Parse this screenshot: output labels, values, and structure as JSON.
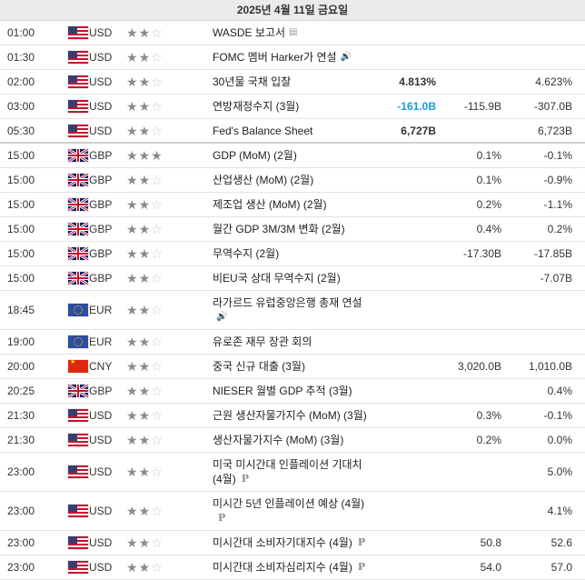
{
  "header": {
    "date": "2025년 4월 11일 금요일"
  },
  "events": [
    {
      "time": "01:00",
      "flag": "us",
      "currency": "USD",
      "stars": 2,
      "event": "WASDE 보고서",
      "icon": "document-icon",
      "actual": "",
      "forecast": "",
      "previous": "",
      "h": 26
    },
    {
      "time": "01:30",
      "flag": "us",
      "currency": "USD",
      "stars": 2,
      "event": "FOMC 멤버 Harker가 연설",
      "icon": "speaker-icon",
      "actual": "",
      "forecast": "",
      "previous": "",
      "h": 26
    },
    {
      "time": "02:00",
      "flag": "us",
      "currency": "USD",
      "stars": 2,
      "event": "30년물 국채 입찰",
      "actual": "4.813%",
      "forecast": "",
      "previous": "4.623%",
      "h": 26
    },
    {
      "time": "03:00",
      "flag": "us",
      "currency": "USD",
      "stars": 2,
      "event": "연방재정수지 (3월)",
      "actual": "-161.0B",
      "actual_color": "blue",
      "forecast": "-115.9B",
      "previous": "-307.0B",
      "h": 26
    },
    {
      "time": "05:30",
      "flag": "us",
      "currency": "USD",
      "stars": 2,
      "event": "Fed's Balance Sheet",
      "actual": "6,727B",
      "forecast": "",
      "previous": "6,723B",
      "h": 25,
      "thick": true
    },
    {
      "time": "15:00",
      "flag": "gb",
      "currency": "GBP",
      "stars": 3,
      "event": "GDP (MoM) (2월)",
      "actual": "",
      "forecast": "0.1%",
      "previous": "-0.1%",
      "h": 26
    },
    {
      "time": "15:00",
      "flag": "gb",
      "currency": "GBP",
      "stars": 2,
      "event": "산업생산 (MoM) (2월)",
      "actual": "",
      "forecast": "0.1%",
      "previous": "-0.9%",
      "h": 26
    },
    {
      "time": "15:00",
      "flag": "gb",
      "currency": "GBP",
      "stars": 2,
      "event": "제조업 생산 (MoM) (2월)",
      "actual": "",
      "forecast": "0.2%",
      "previous": "-1.1%",
      "h": 26
    },
    {
      "time": "15:00",
      "flag": "gb",
      "currency": "GBP",
      "stars": 2,
      "event": "월간 GDP 3M/3M 변화 (2월)",
      "actual": "",
      "forecast": "0.4%",
      "previous": "0.2%",
      "h": 26
    },
    {
      "time": "15:00",
      "flag": "gb",
      "currency": "GBP",
      "stars": 2,
      "event": "무역수지 (2월)",
      "actual": "",
      "forecast": "-17.30B",
      "previous": "-17.85B",
      "h": 26
    },
    {
      "time": "15:00",
      "flag": "gb",
      "currency": "GBP",
      "stars": 2,
      "event": "비EU국 상대 무역수지 (2월)",
      "actual": "",
      "forecast": "",
      "previous": "-7.07B",
      "h": 26
    },
    {
      "time": "18:45",
      "flag": "eu",
      "currency": "EUR",
      "stars": 2,
      "event": "라가르드 유럽중앙은행 총재 연설",
      "icon": "speaker-icon",
      "actual": "",
      "forecast": "",
      "previous": "",
      "h": 42
    },
    {
      "time": "19:00",
      "flag": "eu",
      "currency": "EUR",
      "stars": 2,
      "event": "유로존 재무 장관 회의",
      "actual": "",
      "forecast": "",
      "previous": "",
      "h": 26
    },
    {
      "time": "20:00",
      "flag": "cn",
      "currency": "CNY",
      "stars": 2,
      "event": "중국 신규 대출 (3월)",
      "actual": "",
      "forecast": "3,020.0B",
      "previous": "1,010.0B",
      "h": 26
    },
    {
      "time": "20:25",
      "flag": "gb",
      "currency": "GBP",
      "stars": 2,
      "event": "NIESER 월별 GDP 추적 (3월)",
      "actual": "",
      "forecast": "",
      "previous": "0.4%",
      "h": 26
    },
    {
      "time": "21:30",
      "flag": "us",
      "currency": "USD",
      "stars": 2,
      "event": "근원 생산자물가지수 (MoM) (3월)",
      "actual": "",
      "forecast": "0.3%",
      "previous": "-0.1%",
      "h": 26
    },
    {
      "time": "21:30",
      "flag": "us",
      "currency": "USD",
      "stars": 2,
      "event": "생산자물가지수 (MoM) (3월)",
      "actual": "",
      "forecast": "0.2%",
      "previous": "0.0%",
      "h": 26
    },
    {
      "time": "23:00",
      "flag": "us",
      "currency": "USD",
      "stars": 2,
      "event": "미국 미시간대 인플레이션 기대치 (4월)",
      "icon": "preliminary-icon",
      "actual": "",
      "forecast": "",
      "previous": "5.0%",
      "h": 42
    },
    {
      "time": "23:00",
      "flag": "us",
      "currency": "USD",
      "stars": 2,
      "event": "미시간 5년 인플레이션 예상 (4월)",
      "icon": "preliminary-icon",
      "actual": "",
      "forecast": "",
      "previous": "4.1%",
      "h": 42
    },
    {
      "time": "23:00",
      "flag": "us",
      "currency": "USD",
      "stars": 2,
      "event": "미시간대 소비자기대지수 (4월)",
      "icon": "preliminary-icon",
      "actual": "",
      "forecast": "50.8",
      "previous": "52.6",
      "h": 26
    },
    {
      "time": "23:00",
      "flag": "us",
      "currency": "USD",
      "stars": 2,
      "event": "미시간대 소비자심리지수 (4월)",
      "icon": "preliminary-icon",
      "actual": "",
      "forecast": "54.0",
      "previous": "57.0",
      "h": 26
    }
  ],
  "icons": {
    "document-icon": "▤",
    "speaker-icon": "🔊",
    "preliminary-icon": "P"
  }
}
